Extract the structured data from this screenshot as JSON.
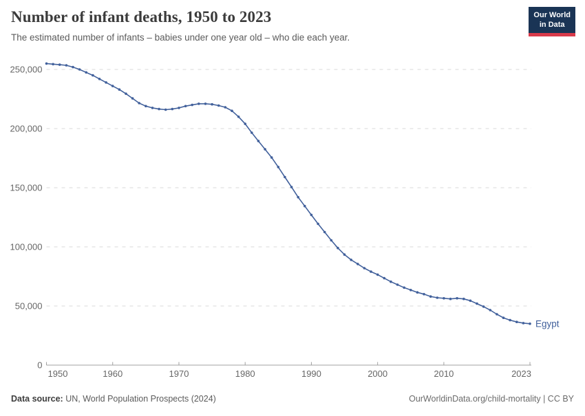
{
  "header": {
    "title": "Number of infant deaths, 1950 to 2023",
    "subtitle": "The estimated number of infants – babies under one year old – who die each year."
  },
  "logo": {
    "line1": "Our World",
    "line2": "in Data",
    "bg_color": "#1a3455",
    "accent_color": "#d93a4a"
  },
  "chart_data": {
    "type": "line",
    "title": "Number of infant deaths, 1950 to 2023",
    "xlabel": "",
    "ylabel": "",
    "grid": "horizontal-dashed",
    "legend_position": "end-of-line-label",
    "xlim": [
      1950,
      2023
    ],
    "ylim": [
      0,
      250000
    ],
    "xticks": [
      1950,
      1960,
      1970,
      1980,
      1990,
      2000,
      2010,
      2023
    ],
    "yticks": [
      0,
      50000,
      100000,
      150000,
      200000,
      250000
    ],
    "ytick_labels": [
      "0",
      "50,000",
      "100,000",
      "150,000",
      "200,000",
      "250,000"
    ],
    "line_color": "#41609b",
    "grid_color": "#dadada",
    "axis_color": "#a0a0a0",
    "tick_text_color": "#666666",
    "series": [
      {
        "name": "Egypt",
        "color": "#41609b",
        "x": [
          1950,
          1951,
          1952,
          1953,
          1954,
          1955,
          1956,
          1957,
          1958,
          1959,
          1960,
          1961,
          1962,
          1963,
          1964,
          1965,
          1966,
          1967,
          1968,
          1969,
          1970,
          1971,
          1972,
          1973,
          1974,
          1975,
          1976,
          1977,
          1978,
          1979,
          1980,
          1981,
          1982,
          1983,
          1984,
          1985,
          1986,
          1987,
          1988,
          1989,
          1990,
          1991,
          1992,
          1993,
          1994,
          1995,
          1996,
          1997,
          1998,
          1999,
          2000,
          2001,
          2002,
          2003,
          2004,
          2005,
          2006,
          2007,
          2008,
          2009,
          2010,
          2011,
          2012,
          2013,
          2014,
          2015,
          2016,
          2017,
          2018,
          2019,
          2020,
          2021,
          2022,
          2023
        ],
        "values": [
          255000,
          254500,
          254000,
          253500,
          252000,
          250000,
          247500,
          245000,
          242000,
          239000,
          236000,
          233000,
          229500,
          225500,
          221500,
          219000,
          217500,
          216500,
          216000,
          216500,
          217500,
          219000,
          220000,
          221000,
          221000,
          220500,
          219500,
          218000,
          215000,
          210000,
          204000,
          196500,
          189500,
          182500,
          175500,
          167500,
          159000,
          150500,
          142000,
          134500,
          127000,
          119500,
          112500,
          105500,
          99000,
          93500,
          89000,
          85500,
          82000,
          79000,
          76500,
          73500,
          70500,
          68000,
          65500,
          63500,
          61500,
          60000,
          58000,
          57000,
          56500,
          56000,
          56500,
          56000,
          54500,
          52000,
          49500,
          46500,
          43000,
          40000,
          38000,
          36500,
          35500,
          35000
        ]
      }
    ]
  },
  "footer": {
    "source_label": "Data source:",
    "source_text": " UN, World Population Prospects (2024)",
    "link_text": "OurWorldinData.org/child-mortality",
    "license_text": " | CC BY"
  }
}
